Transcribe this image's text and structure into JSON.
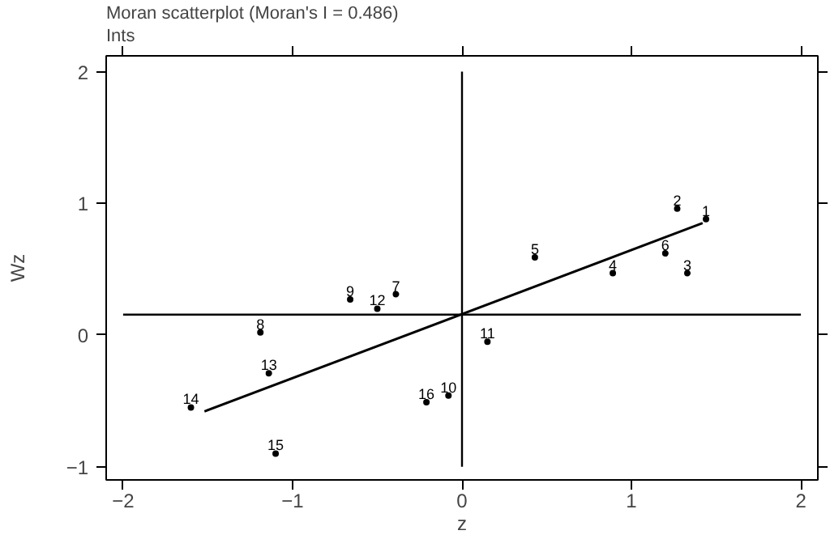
{
  "chart_data": {
    "type": "scatter",
    "title": "Moran scatterplot (Moran's I = 0.486)",
    "subtitle": "Ints",
    "xlabel": "z",
    "ylabel": "Wz",
    "x": [
      1.44,
      1.27,
      1.33,
      0.89,
      0.43,
      1.2,
      -0.39,
      -1.19,
      -0.66,
      -0.08,
      0.15,
      -0.5,
      -1.14,
      -1.6,
      -1.1,
      -0.21
    ],
    "series": [
      {
        "type": "scatter",
        "color": "#000000",
        "marker": "circle",
        "values": [
          0.88,
          0.96,
          0.47,
          0.47,
          0.59,
          0.62,
          0.31,
          0.02,
          0.27,
          -0.46,
          -0.05,
          0.2,
          -0.29,
          -0.55,
          -0.9,
          -0.51
        ]
      },
      {
        "type": "line",
        "color": "#000000",
        "x": [
          -1.52,
          1.42
        ],
        "values": [
          -0.58,
          0.85
        ]
      }
    ],
    "annotations": [
      {
        "text": "1",
        "x": 1.44,
        "y": 0.88
      },
      {
        "text": "2",
        "x": 1.27,
        "y": 0.96
      },
      {
        "text": "3",
        "x": 1.33,
        "y": 0.47
      },
      {
        "text": "4",
        "x": 0.89,
        "y": 0.47
      },
      {
        "text": "5",
        "x": 0.43,
        "y": 0.59
      },
      {
        "text": "6",
        "x": 1.2,
        "y": 0.62
      },
      {
        "text": "7",
        "x": -0.39,
        "y": 0.31
      },
      {
        "text": "8",
        "x": -1.19,
        "y": 0.02
      },
      {
        "text": "9",
        "x": -0.66,
        "y": 0.27
      },
      {
        "text": "10",
        "x": -0.08,
        "y": -0.46
      },
      {
        "text": "11",
        "x": 0.15,
        "y": -0.05
      },
      {
        "text": "12",
        "x": -0.5,
        "y": 0.2
      },
      {
        "text": "13",
        "x": -1.14,
        "y": -0.29
      },
      {
        "text": "14",
        "x": -1.6,
        "y": -0.55
      },
      {
        "text": "15",
        "x": -1.1,
        "y": -0.9
      },
      {
        "text": "16",
        "x": -0.21,
        "y": -0.51
      }
    ],
    "ref_lines": [
      {
        "axis": "y",
        "value": 0.155,
        "color": "#000000"
      },
      {
        "axis": "x",
        "value": 0,
        "color": "#000000"
      }
    ],
    "xlim": [
      -2.1,
      2.1
    ],
    "ylim": [
      -1.1,
      2.12
    ],
    "xticks": [
      -2,
      -1,
      0,
      1,
      2
    ],
    "yticks": [
      -1,
      0,
      1,
      2
    ],
    "grid": false
  }
}
